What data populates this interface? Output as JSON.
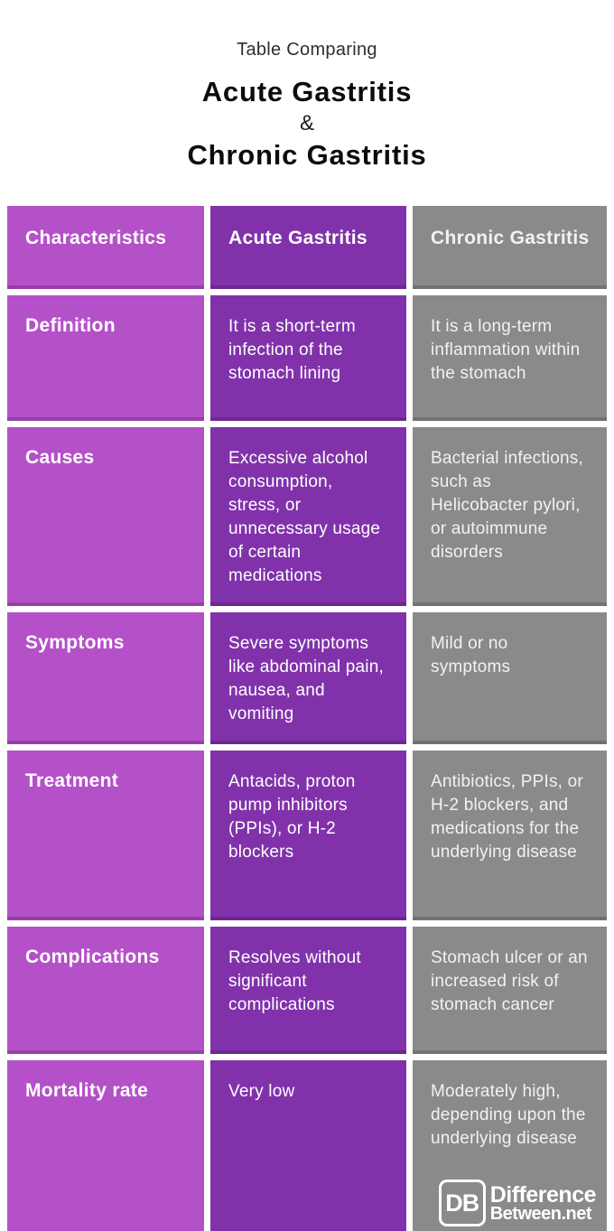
{
  "header": {
    "eyebrow": "Table Comparing",
    "title_line1": "Acute Gastritis",
    "ampersand": "&",
    "title_line2": "Chronic Gastritis"
  },
  "colors": {
    "characteristics_column": "#b551c8",
    "acute_column": "#8132ab",
    "chronic_column": "#8a8a8a",
    "table_text": "#ffffff",
    "page_background": "#ffffff",
    "title_text": "#0c0c0c"
  },
  "table": {
    "columns": [
      {
        "label": "Characteristics"
      },
      {
        "label": "Acute Gastritis"
      },
      {
        "label": "Chronic Gastritis"
      }
    ],
    "rows": [
      {
        "characteristic": "Definition",
        "acute": "It is a short-term infection of the stomach lining",
        "chronic": "It is a long-term inflammation within the stomach"
      },
      {
        "characteristic": "Causes",
        "acute": "Excessive alcohol consumption, stress, or unnecessary usage of certain medications",
        "chronic": "Bacterial infections, such as Helicobacter pylori, or autoimmune disorders"
      },
      {
        "characteristic": "Symptoms",
        "acute": "Severe symptoms like abdominal pain, nausea, and vomiting",
        "chronic": "Mild or no symptoms"
      },
      {
        "characteristic": "Treatment",
        "acute": "Antacids, proton pump inhibitors (PPIs), or H-2 blockers",
        "chronic": "Antibiotics, PPIs, or H-2 blockers, and medications for the underlying disease"
      },
      {
        "characteristic": "Complications",
        "acute": "Resolves without significant complications",
        "chronic": "Stomach ulcer or an increased risk of stomach cancer"
      },
      {
        "characteristic": "Mortality rate",
        "acute": "Very low",
        "chronic": "Moderately high, depending upon the underlying disease"
      }
    ]
  },
  "logo": {
    "abbreviation": "DB",
    "line1": "Difference",
    "line2": "Between.net"
  }
}
